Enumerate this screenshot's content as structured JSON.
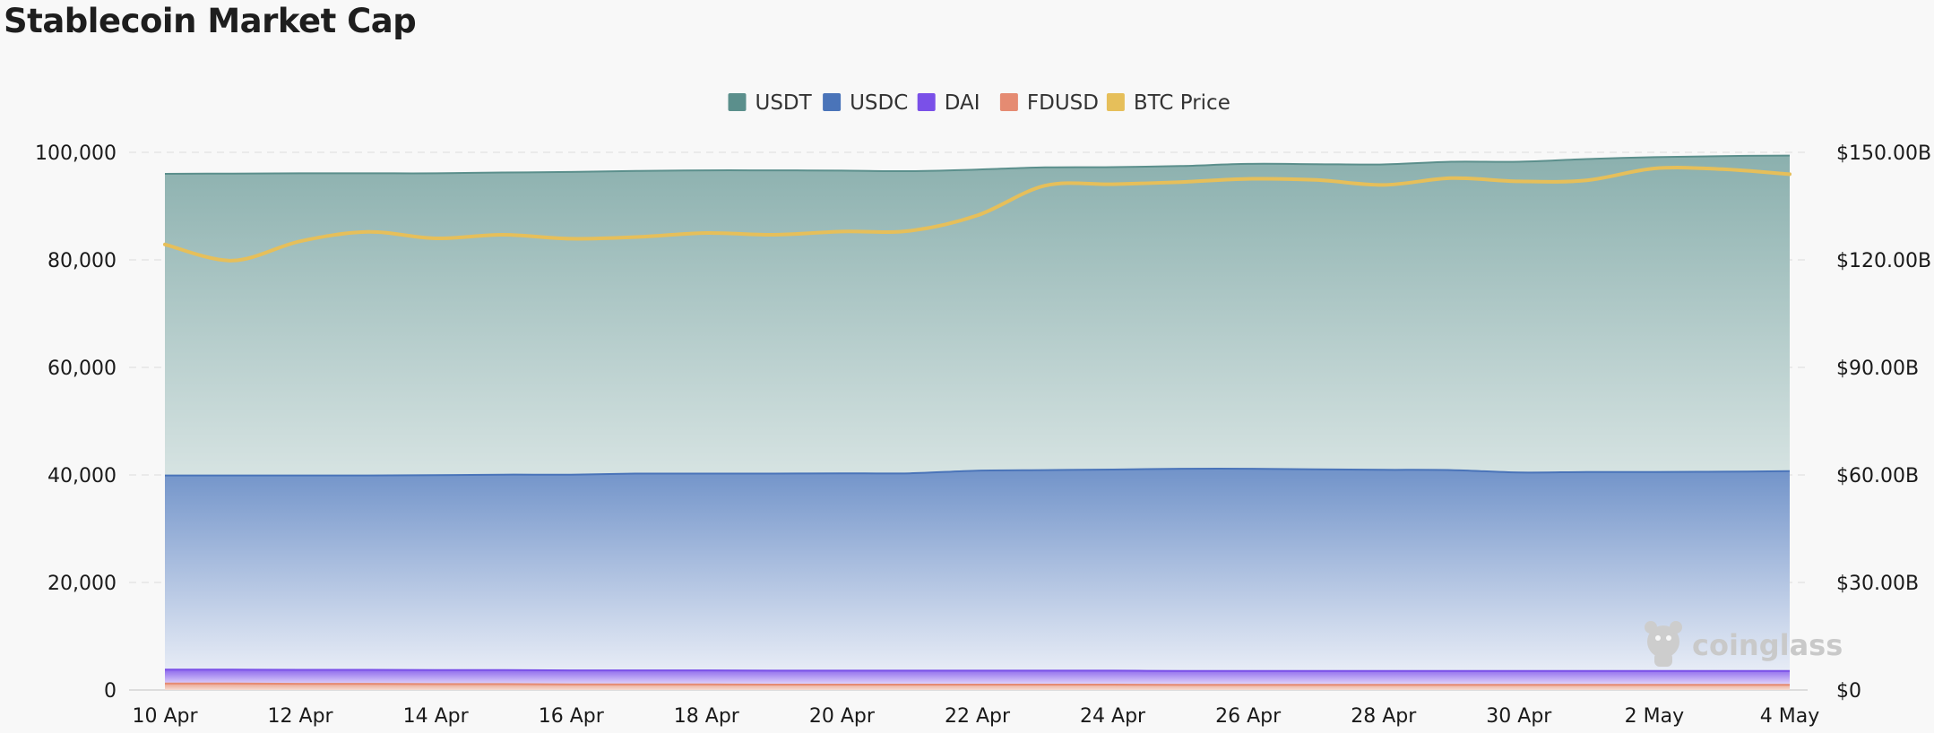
{
  "title": "Stablecoin Market Cap",
  "watermark": {
    "text": "coinglass"
  },
  "chart_data": {
    "type": "area",
    "title": "Stablecoin Market Cap",
    "x": [
      "2025-04-10",
      "2025-04-11",
      "2025-04-12",
      "2025-04-13",
      "2025-04-14",
      "2025-04-15",
      "2025-04-16",
      "2025-04-17",
      "2025-04-18",
      "2025-04-19",
      "2025-04-20",
      "2025-04-21",
      "2025-04-22",
      "2025-04-23",
      "2025-04-24",
      "2025-04-25",
      "2025-04-26",
      "2025-04-27",
      "2025-04-28",
      "2025-04-29",
      "2025-04-30",
      "2025-05-01",
      "2025-05-02",
      "2025-05-03",
      "2025-05-04"
    ],
    "x_tick_labels": [
      "10 Apr",
      "12 Apr",
      "14 Apr",
      "16 Apr",
      "18 Apr",
      "20 Apr",
      "22 Apr",
      "24 Apr",
      "26 Apr",
      "28 Apr",
      "30 Apr",
      "2 May",
      "4 May"
    ],
    "y_left": {
      "ticks": [
        "0",
        "20,000",
        "40,000",
        "60,000",
        "80,000",
        "100,000"
      ],
      "range": [
        0,
        100000
      ],
      "grid": true
    },
    "y_right": {
      "ticks": [
        "$0",
        "$30.00B",
        "$60.00B",
        "$90.00B",
        "$120.00B",
        "$150.00B"
      ],
      "range": [
        0,
        150
      ]
    },
    "legend": {
      "position": "top-center"
    },
    "series": [
      {
        "name": "USDT",
        "kind": "stacked-area",
        "color": "#5b8f8c",
        "values": [
          56100,
          56150,
          56200,
          56200,
          56150,
          56200,
          56300,
          56300,
          56400,
          56400,
          56300,
          56200,
          56000,
          56300,
          56250,
          56300,
          56700,
          56750,
          56800,
          57350,
          57800,
          58200,
          58550,
          58700,
          58700
        ]
      },
      {
        "name": "USDC",
        "kind": "stacked-area",
        "color": "#4a74b9",
        "values": [
          36100,
          36100,
          36150,
          36150,
          36250,
          36350,
          36400,
          36600,
          36600,
          36650,
          36700,
          36700,
          37200,
          37300,
          37400,
          37600,
          37600,
          37500,
          37400,
          37350,
          36900,
          37000,
          37000,
          37050,
          37150
        ]
      },
      {
        "name": "DAI",
        "kind": "stacked-area",
        "color": "#7a50e8",
        "values": [
          2600,
          2600,
          2600,
          2600,
          2600,
          2600,
          2600,
          2600,
          2600,
          2600,
          2600,
          2600,
          2600,
          2600,
          2600,
          2600,
          2600,
          2600,
          2600,
          2600,
          2600,
          2600,
          2600,
          2600,
          2600
        ]
      },
      {
        "name": "FDUSD",
        "kind": "stacked-area",
        "color": "#e58b72",
        "values": [
          1200,
          1200,
          1150,
          1150,
          1100,
          1100,
          1050,
          1050,
          1050,
          1000,
          1000,
          1000,
          1000,
          1000,
          1000,
          950,
          950,
          950,
          950,
          950,
          950,
          950,
          950,
          950,
          950
        ]
      },
      {
        "name": "BTC Price",
        "kind": "line",
        "axis": "right",
        "color": "#e6bf5a",
        "unit": "$B",
        "values": [
          124.3,
          119.8,
          125.2,
          127.8,
          126.0,
          127.0,
          125.9,
          126.4,
          127.5,
          127.0,
          127.9,
          128.1,
          132.4,
          140.7,
          141.1,
          141.7,
          142.6,
          142.3,
          140.9,
          142.8,
          141.9,
          142.2,
          145.5,
          145.3,
          143.9
        ]
      }
    ]
  }
}
